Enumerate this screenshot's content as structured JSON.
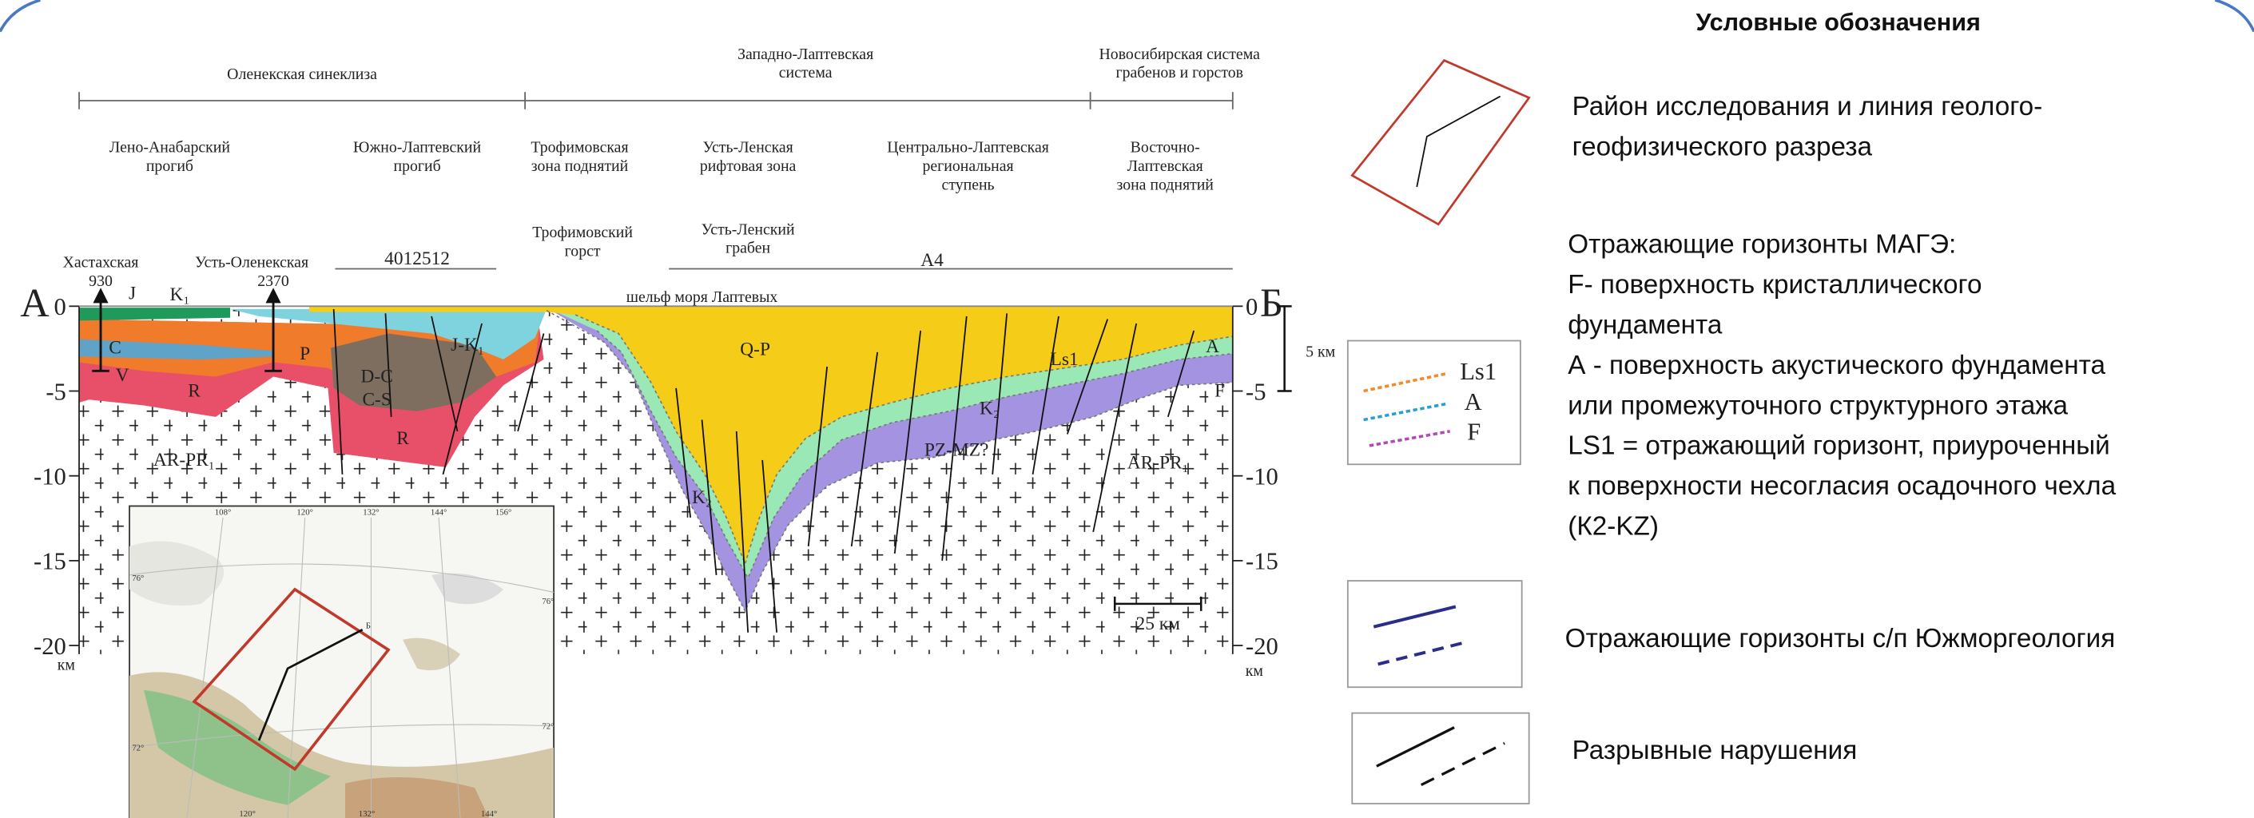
{
  "section": {
    "regions": [
      [
        "Оленекская синеклиза"
      ],
      [
        "Западно-Лаптевская",
        "система"
      ],
      [
        "Новосибирская система",
        "грабенов и горстов"
      ]
    ],
    "structures": [
      [
        "Лено-Анабарский",
        "прогиб"
      ],
      [
        "Южно-Лаптевский",
        "прогиб"
      ],
      [
        "Трофимовская",
        "зона поднятий"
      ],
      [
        "Усть-Ленская",
        "рифтовая зона"
      ],
      [
        "Центрально-Лаптевская",
        "региональная",
        "ступень"
      ],
      [
        "Восточно-",
        "Лаптевская",
        "зона поднятий"
      ]
    ],
    "sub_structures": [
      [
        "Трофимовский",
        "горст"
      ],
      [
        "Усть-Ленский",
        "грабен"
      ]
    ],
    "profiles": [
      "4012512",
      "А4"
    ],
    "wells": [
      {
        "name": "Хастахская",
        "depth": 930
      },
      {
        "name": "Усть-Оленекская",
        "depth": 2370
      }
    ],
    "start": "А",
    "end": "Б",
    "shelf": "шельф моря Лаптевых",
    "depth_ticks": [
      0,
      -5,
      -10,
      -15,
      -20
    ],
    "depth_unit": "км",
    "vertical_scale": "5 км",
    "horizontal_scale": "25 км",
    "units": [
      "J",
      "K₁",
      "C",
      "V",
      "R",
      "P",
      "D-C",
      "C-S",
      "R",
      "J-K₁",
      "AR-PR₁",
      "Q-P",
      "Ls1",
      "A",
      "K₂",
      "PZ-MZ?",
      "K₂",
      "F",
      "AR-PR₁"
    ]
  },
  "map": {
    "top_ticks": [
      "108°",
      "120°",
      "132°",
      "144°",
      "156°"
    ],
    "bottom_ticks": [
      "120°",
      "132°",
      "144°"
    ],
    "left_ticks": [
      "76°",
      "72°"
    ],
    "right_ticks": [
      "76°",
      "72°"
    ],
    "end": "Б"
  },
  "legend": {
    "title": "Условные обозначения",
    "area": [
      "Район исследования и линия геолого-",
      "геофизического разреза"
    ],
    "mage": [
      "Отражающие горизонты МАГЭ:",
      "F- поверхность кристаллического",
      "фундамента",
      "А - поверхность акустического фундамента",
      "или промежуточного структурного этажа",
      "LS1 = отражающий горизонт, приуроченный",
      "к поверхности несогласия осадочного чехла",
      "(К2-KZ)"
    ],
    "mage_swatch": [
      "Ls1",
      "A",
      "F"
    ],
    "yuzhmorgeo": "Отражающие горизонты с/п Южморгеология",
    "faults": "Разрывные нарушения"
  }
}
